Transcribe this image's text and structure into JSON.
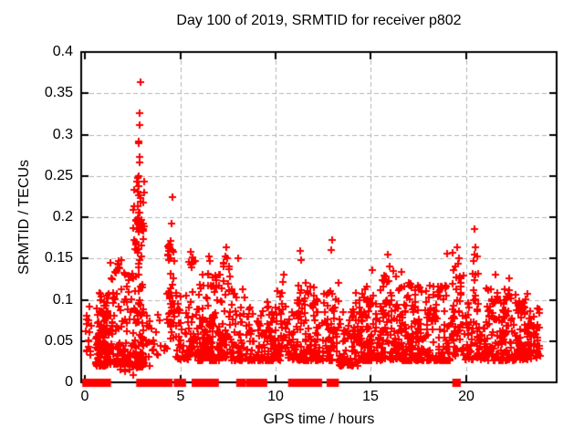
{
  "title": "Day 100 of 2019, SRMTID for receiver p802",
  "colors": {
    "marker": "#ff0000",
    "grid": "#b4b4b4",
    "axis": "#000000",
    "background": "#ffffff"
  },
  "chart_data": {
    "type": "scatter",
    "title": "Day 100 of 2019, SRMTID for receiver p802",
    "xlabel": "GPS time / hours",
    "ylabel": "SRMTID / TECUs",
    "xlim": [
      -0.2,
      24.75
    ],
    "ylim": [
      0,
      0.4
    ],
    "xticks": [
      0,
      5,
      10,
      15,
      20
    ],
    "xtick_labels": [
      "0",
      "5",
      "10",
      "15",
      "20"
    ],
    "yticks": [
      0,
      0.05,
      0.1,
      0.15,
      0.2,
      0.25,
      0.3,
      0.35,
      0.4
    ],
    "ytick_labels": [
      "0",
      "0.05",
      "0.1",
      "0.15",
      "0.2",
      "0.25",
      "0.3",
      "0.35",
      "0.4"
    ],
    "grid": true,
    "legend": "none",
    "marker": {
      "shape": "plus",
      "color": "#ff0000",
      "size": 9,
      "line_width": 2
    },
    "seed": 1337,
    "clusters": [
      {
        "x0": 0.03,
        "x1": 0.4,
        "y0": 0.03,
        "y1": 0.098,
        "bias": 1.3,
        "n": 18
      },
      {
        "x0": 0.55,
        "x1": 1.3,
        "y0": 0.02,
        "y1": 0.108,
        "bias": 1.7,
        "n": 130
      },
      {
        "x0": 1.3,
        "x1": 2.45,
        "y0": 0.022,
        "y1": 0.15,
        "bias": 2.2,
        "n": 115
      },
      {
        "x0": 2.5,
        "x1": 3.1,
        "y0": 0.018,
        "y1": 0.245,
        "bias": 1.7,
        "n": 115
      },
      {
        "x0": 3.15,
        "x1": 4.25,
        "y0": 0.03,
        "y1": 0.082,
        "bias": 1.5,
        "n": 22
      },
      {
        "x0": 4.25,
        "x1": 4.7,
        "y0": 0.04,
        "y1": 0.172,
        "bias": 1.2,
        "n": 40
      },
      {
        "x0": 4.75,
        "x1": 5.45,
        "y0": 0.028,
        "y1": 0.112,
        "bias": 1.8,
        "n": 45
      },
      {
        "x0": 5.45,
        "x1": 5.92,
        "y0": 0.032,
        "y1": 0.148,
        "bias": 1.9,
        "n": 38
      },
      {
        "x0": 5.92,
        "x1": 7.05,
        "y0": 0.026,
        "y1": 0.132,
        "bias": 2.0,
        "n": 130
      },
      {
        "x0": 7.05,
        "x1": 7.68,
        "y0": 0.03,
        "y1": 0.148,
        "bias": 1.9,
        "n": 60
      },
      {
        "x0": 7.7,
        "x1": 8.45,
        "y0": 0.026,
        "y1": 0.118,
        "bias": 1.9,
        "n": 55
      },
      {
        "x0": 8.45,
        "x1": 9.45,
        "y0": 0.026,
        "y1": 0.092,
        "bias": 1.7,
        "n": 60
      },
      {
        "x0": 9.45,
        "x1": 10.55,
        "y0": 0.026,
        "y1": 0.112,
        "bias": 1.9,
        "n": 90
      },
      {
        "x0": 10.55,
        "x1": 11.05,
        "y0": 0.028,
        "y1": 0.085,
        "bias": 1.5,
        "n": 28
      },
      {
        "x0": 11.05,
        "x1": 12.35,
        "y0": 0.026,
        "y1": 0.122,
        "bias": 1.9,
        "n": 115
      },
      {
        "x0": 12.4,
        "x1": 13.25,
        "y0": 0.026,
        "y1": 0.112,
        "bias": 1.8,
        "n": 55
      },
      {
        "x0": 13.25,
        "x1": 14.3,
        "y0": 0.02,
        "y1": 0.1,
        "bias": 1.7,
        "n": 75
      },
      {
        "x0": 14.3,
        "x1": 15.55,
        "y0": 0.026,
        "y1": 0.118,
        "bias": 1.9,
        "n": 120
      },
      {
        "x0": 15.55,
        "x1": 16.6,
        "y0": 0.028,
        "y1": 0.135,
        "bias": 1.8,
        "n": 95
      },
      {
        "x0": 16.6,
        "x1": 17.8,
        "y0": 0.026,
        "y1": 0.122,
        "bias": 1.9,
        "n": 110
      },
      {
        "x0": 17.8,
        "x1": 19.2,
        "y0": 0.026,
        "y1": 0.118,
        "bias": 1.9,
        "n": 110
      },
      {
        "x0": 19.2,
        "x1": 19.95,
        "y0": 0.032,
        "y1": 0.148,
        "bias": 1.5,
        "n": 55
      },
      {
        "x0": 19.95,
        "x1": 21.1,
        "y0": 0.028,
        "y1": 0.132,
        "bias": 1.8,
        "n": 80
      },
      {
        "x0": 21.1,
        "x1": 22.6,
        "y0": 0.026,
        "y1": 0.115,
        "bias": 1.8,
        "n": 135
      },
      {
        "x0": 22.6,
        "x1": 23.45,
        "y0": 0.028,
        "y1": 0.108,
        "bias": 1.6,
        "n": 85
      },
      {
        "x0": 23.45,
        "x1": 23.9,
        "y0": 0.03,
        "y1": 0.09,
        "bias": 1.3,
        "n": 28
      }
    ],
    "outliers": [
      [
        2.93,
        0.364
      ],
      [
        2.88,
        0.326
      ],
      [
        2.87,
        0.312
      ],
      [
        2.84,
        0.292
      ],
      [
        2.83,
        0.289
      ],
      [
        2.88,
        0.273
      ],
      [
        2.87,
        0.266
      ],
      [
        2.82,
        0.25
      ],
      [
        2.78,
        0.247
      ],
      [
        2.74,
        0.243
      ],
      [
        2.8,
        0.238
      ],
      [
        2.76,
        0.231
      ],
      [
        2.85,
        0.226
      ],
      [
        2.9,
        0.219
      ],
      [
        2.79,
        0.213
      ],
      [
        2.86,
        0.206
      ],
      [
        2.81,
        0.199
      ],
      [
        2.75,
        0.194
      ],
      [
        2.89,
        0.19
      ],
      [
        2.72,
        0.186
      ],
      [
        4.6,
        0.224
      ],
      [
        4.56,
        0.192
      ],
      [
        4.5,
        0.171
      ],
      [
        4.42,
        0.166
      ],
      [
        4.62,
        0.158
      ],
      [
        4.35,
        0.154
      ],
      [
        4.47,
        0.15
      ],
      [
        1.92,
        0.148
      ],
      [
        1.7,
        0.144
      ],
      [
        5.55,
        0.158
      ],
      [
        5.62,
        0.151
      ],
      [
        5.7,
        0.146
      ],
      [
        6.5,
        0.153
      ],
      [
        6.56,
        0.147
      ],
      [
        7.43,
        0.164
      ],
      [
        7.36,
        0.152
      ],
      [
        7.47,
        0.15
      ],
      [
        8.02,
        0.15
      ],
      [
        10.42,
        0.13
      ],
      [
        10.36,
        0.122
      ],
      [
        11.3,
        0.159
      ],
      [
        11.34,
        0.148
      ],
      [
        11.8,
        0.116
      ],
      [
        12.95,
        0.172
      ],
      [
        12.9,
        0.16
      ],
      [
        13.32,
        0.12
      ],
      [
        14.2,
        0.108
      ],
      [
        15.1,
        0.136
      ],
      [
        15.9,
        0.155
      ],
      [
        16.0,
        0.14
      ],
      [
        16.6,
        0.134
      ],
      [
        19.0,
        0.156
      ],
      [
        19.3,
        0.157
      ],
      [
        19.55,
        0.163
      ],
      [
        19.62,
        0.15
      ],
      [
        20.45,
        0.186
      ],
      [
        20.5,
        0.163
      ],
      [
        20.42,
        0.155
      ],
      [
        20.56,
        0.152
      ],
      [
        20.38,
        0.147
      ],
      [
        21.55,
        0.13
      ],
      [
        22.25,
        0.126
      ],
      [
        1.85,
        0.015
      ],
      [
        2.1,
        0.013
      ],
      [
        2.32,
        0.016
      ],
      [
        2.55,
        0.009
      ],
      [
        3.4,
        0.02
      ]
    ],
    "zero_segments": [
      [
        0.0,
        0.08
      ],
      [
        0.15,
        0.28
      ],
      [
        0.33,
        0.5
      ],
      [
        0.55,
        0.75
      ],
      [
        0.78,
        1.02
      ],
      [
        1.1,
        1.22
      ],
      [
        2.83,
        3.0
      ],
      [
        3.06,
        3.38
      ],
      [
        3.42,
        3.72
      ],
      [
        3.76,
        4.0
      ],
      [
        4.04,
        4.18
      ],
      [
        4.25,
        4.45
      ],
      [
        4.8,
        5.0
      ],
      [
        5.04,
        5.16
      ],
      [
        5.74,
        5.95
      ],
      [
        6.1,
        6.28
      ],
      [
        6.42,
        6.58
      ],
      [
        6.7,
        6.88
      ],
      [
        8.08,
        8.28
      ],
      [
        8.58,
        8.76
      ],
      [
        8.95,
        9.1
      ],
      [
        9.28,
        9.42
      ],
      [
        10.8,
        11.0
      ],
      [
        11.12,
        11.32
      ],
      [
        11.42,
        11.7
      ],
      [
        11.76,
        12.12
      ],
      [
        12.18,
        12.3
      ],
      [
        12.82,
        12.98
      ],
      [
        13.04,
        13.18
      ],
      [
        19.42,
        19.58
      ]
    ]
  }
}
